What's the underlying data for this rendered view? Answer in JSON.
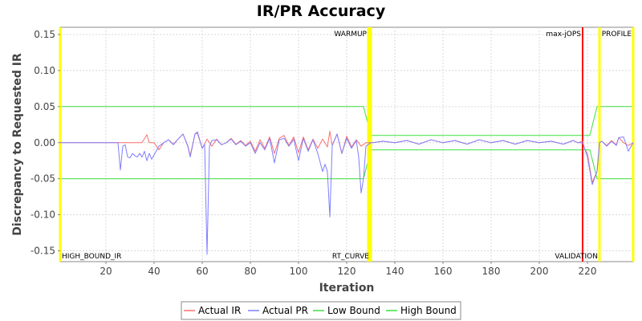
{
  "chart_data": {
    "type": "line",
    "title": "IR/PR Accuracy",
    "xlabel": "Iteration",
    "ylabel": "Discrepancy to Requested IR",
    "xlim": [
      1,
      239
    ],
    "ylim": [
      -0.165,
      0.16
    ],
    "xticks": [
      20,
      40,
      60,
      80,
      100,
      120,
      140,
      160,
      180,
      200,
      220
    ],
    "yticks": [
      -0.15,
      -0.1,
      -0.05,
      0.0,
      0.05,
      0.1,
      0.15
    ],
    "ytick_labels": [
      "-0.15",
      "-0.10",
      "-0.05",
      "0.00",
      "0.05",
      "0.10",
      "0.15"
    ],
    "grid": true,
    "legend_position": "bottom",
    "markers": [
      {
        "x": 1,
        "color": "#ffff00",
        "label": "HIGH_BOUND_IR",
        "label_pos": "bottom"
      },
      {
        "x": 129,
        "color": "#ffff00",
        "label": "WARMUP",
        "label_pos": "top"
      },
      {
        "x": 130,
        "color": "#ffff00",
        "label": "RT_CURVE",
        "label_pos": "bottom"
      },
      {
        "x": 218,
        "color": "#ff0000",
        "label": "max-jOPS",
        "label_pos": "top"
      },
      {
        "x": 225,
        "color": "#ffff00",
        "label": "VALIDATION",
        "label_pos": "bottom"
      },
      {
        "x": 239,
        "color": "#ffff00",
        "label": "PROFILE",
        "label_pos": "top"
      }
    ],
    "series": [
      {
        "name": "Actual IR",
        "color": "#ff6f6f",
        "points": [
          [
            1,
            0
          ],
          [
            25,
            0
          ],
          [
            30,
            0
          ],
          [
            35,
            0
          ],
          [
            37,
            0.011
          ],
          [
            38,
            0
          ],
          [
            40,
            0
          ],
          [
            42,
            -0.01
          ],
          [
            44,
            0
          ],
          [
            46,
            0.004
          ],
          [
            48,
            -0.002
          ],
          [
            50,
            0.005
          ],
          [
            52,
            0.012
          ],
          [
            54,
            -0.004
          ],
          [
            55,
            -0.018
          ],
          [
            57,
            0.012
          ],
          [
            58,
            0.013
          ],
          [
            60,
            -0.008
          ],
          [
            62,
            0.005
          ],
          [
            64,
            -0.005
          ],
          [
            66,
            0.005
          ],
          [
            68,
            -0.003
          ],
          [
            70,
            0
          ],
          [
            72,
            0.006
          ],
          [
            74,
            -0.002
          ],
          [
            76,
            0.003
          ],
          [
            78,
            -0.004
          ],
          [
            80,
            0.002
          ],
          [
            82,
            -0.012
          ],
          [
            84,
            0.004
          ],
          [
            86,
            -0.008
          ],
          [
            88,
            0.008
          ],
          [
            90,
            -0.015
          ],
          [
            92,
            0.006
          ],
          [
            94,
            0.01
          ],
          [
            96,
            -0.004
          ],
          [
            98,
            0.008
          ],
          [
            100,
            -0.014
          ],
          [
            102,
            0.008
          ],
          [
            104,
            -0.01
          ],
          [
            106,
            0.005
          ],
          [
            108,
            -0.008
          ],
          [
            110,
            0.005
          ],
          [
            112,
            -0.006
          ],
          [
            113,
            0.016
          ],
          [
            114,
            -0.004
          ],
          [
            116,
            0.012
          ],
          [
            118,
            -0.015
          ],
          [
            120,
            0.009
          ],
          [
            122,
            -0.006
          ],
          [
            124,
            0.004
          ],
          [
            126,
            -0.005
          ],
          [
            128,
            0
          ],
          [
            130,
            0
          ],
          [
            131,
            0
          ],
          [
            135,
            0.002
          ],
          [
            140,
            0
          ],
          [
            145,
            0.003
          ],
          [
            150,
            -0.002
          ],
          [
            155,
            0.004
          ],
          [
            160,
            0
          ],
          [
            165,
            0.003
          ],
          [
            170,
            -0.002
          ],
          [
            175,
            0.004
          ],
          [
            180,
            0
          ],
          [
            185,
            0.003
          ],
          [
            190,
            -0.002
          ],
          [
            195,
            0.003
          ],
          [
            200,
            0
          ],
          [
            205,
            0.002
          ],
          [
            210,
            -0.002
          ],
          [
            214,
            0.003
          ],
          [
            216,
            0
          ],
          [
            218,
            0.002
          ],
          [
            219,
            -0.01
          ],
          [
            220,
            -0.015
          ],
          [
            222,
            -0.055
          ],
          [
            224,
            -0.04
          ],
          [
            225,
            0
          ],
          [
            226,
            0.002
          ],
          [
            228,
            -0.004
          ],
          [
            230,
            0.003
          ],
          [
            232,
            -0.003
          ],
          [
            233,
            0.007
          ],
          [
            235,
            0
          ],
          [
            237,
            -0.004
          ],
          [
            239,
            0
          ]
        ]
      },
      {
        "name": "Actual PR",
        "color": "#7f7fff",
        "points": [
          [
            1,
            0
          ],
          [
            25,
            0
          ],
          [
            26,
            -0.038
          ],
          [
            27,
            -0.005
          ],
          [
            28,
            -0.003
          ],
          [
            29,
            -0.02
          ],
          [
            30,
            -0.021
          ],
          [
            31,
            -0.015
          ],
          [
            32,
            -0.018
          ],
          [
            33,
            -0.02
          ],
          [
            34,
            -0.015
          ],
          [
            35,
            -0.02
          ],
          [
            36,
            -0.012
          ],
          [
            37,
            -0.025
          ],
          [
            38,
            -0.015
          ],
          [
            39,
            -0.023
          ],
          [
            40,
            -0.017
          ],
          [
            42,
            -0.005
          ],
          [
            44,
            0
          ],
          [
            46,
            0.004
          ],
          [
            48,
            -0.003
          ],
          [
            50,
            0.005
          ],
          [
            52,
            0.012
          ],
          [
            54,
            -0.005
          ],
          [
            55,
            -0.02
          ],
          [
            57,
            0.012
          ],
          [
            58,
            0.015
          ],
          [
            60,
            -0.008
          ],
          [
            61,
            -0.002
          ],
          [
            62,
            -0.155
          ],
          [
            63,
            -0.005
          ],
          [
            64,
            0.003
          ],
          [
            66,
            0.004
          ],
          [
            68,
            -0.003
          ],
          [
            70,
            0
          ],
          [
            72,
            0.005
          ],
          [
            74,
            -0.003
          ],
          [
            76,
            0.002
          ],
          [
            78,
            -0.005
          ],
          [
            80,
            0
          ],
          [
            82,
            -0.015
          ],
          [
            84,
            0
          ],
          [
            86,
            -0.01
          ],
          [
            88,
            0.006
          ],
          [
            90,
            -0.028
          ],
          [
            92,
            0.004
          ],
          [
            94,
            0.006
          ],
          [
            96,
            -0.005
          ],
          [
            98,
            0.005
          ],
          [
            100,
            -0.025
          ],
          [
            102,
            0.006
          ],
          [
            104,
            -0.012
          ],
          [
            106,
            0.004
          ],
          [
            108,
            -0.015
          ],
          [
            110,
            -0.04
          ],
          [
            111,
            -0.03
          ],
          [
            112,
            -0.04
          ],
          [
            113,
            -0.103
          ],
          [
            114,
            -0.004
          ],
          [
            116,
            0.012
          ],
          [
            118,
            -0.015
          ],
          [
            120,
            0.006
          ],
          [
            122,
            -0.008
          ],
          [
            124,
            0.003
          ],
          [
            125,
            -0.02
          ],
          [
            126,
            -0.07
          ],
          [
            127,
            -0.05
          ],
          [
            128,
            -0.005
          ],
          [
            130,
            0
          ],
          [
            131,
            0
          ],
          [
            135,
            0.002
          ],
          [
            140,
            0
          ],
          [
            145,
            0.003
          ],
          [
            150,
            -0.002
          ],
          [
            155,
            0.004
          ],
          [
            160,
            0
          ],
          [
            165,
            0.003
          ],
          [
            170,
            -0.002
          ],
          [
            175,
            0.004
          ],
          [
            180,
            0
          ],
          [
            185,
            0.003
          ],
          [
            190,
            -0.002
          ],
          [
            195,
            0.003
          ],
          [
            200,
            0
          ],
          [
            205,
            0.002
          ],
          [
            210,
            -0.002
          ],
          [
            214,
            0.003
          ],
          [
            216,
            0
          ],
          [
            218,
            0
          ],
          [
            219,
            -0.01
          ],
          [
            220,
            -0.02
          ],
          [
            222,
            -0.058
          ],
          [
            224,
            -0.04
          ],
          [
            225,
            0
          ],
          [
            226,
            0.002
          ],
          [
            228,
            -0.005
          ],
          [
            230,
            0.002
          ],
          [
            232,
            -0.004
          ],
          [
            233,
            0.007
          ],
          [
            235,
            0.008
          ],
          [
            237,
            -0.012
          ],
          [
            239,
            0
          ]
        ]
      },
      {
        "name": "Low Bound",
        "color": "#3fdf3f",
        "points": [
          [
            1,
            -0.05
          ],
          [
            127,
            -0.05
          ],
          [
            130,
            -0.01
          ],
          [
            221,
            -0.01
          ],
          [
            224,
            -0.05
          ],
          [
            239,
            -0.05
          ]
        ]
      },
      {
        "name": "High Bound",
        "color": "#3fdf3f",
        "points": [
          [
            1,
            0.05
          ],
          [
            127,
            0.05
          ],
          [
            130,
            0.01
          ],
          [
            221,
            0.01
          ],
          [
            224,
            0.05
          ],
          [
            239,
            0.05
          ]
        ]
      }
    ]
  }
}
